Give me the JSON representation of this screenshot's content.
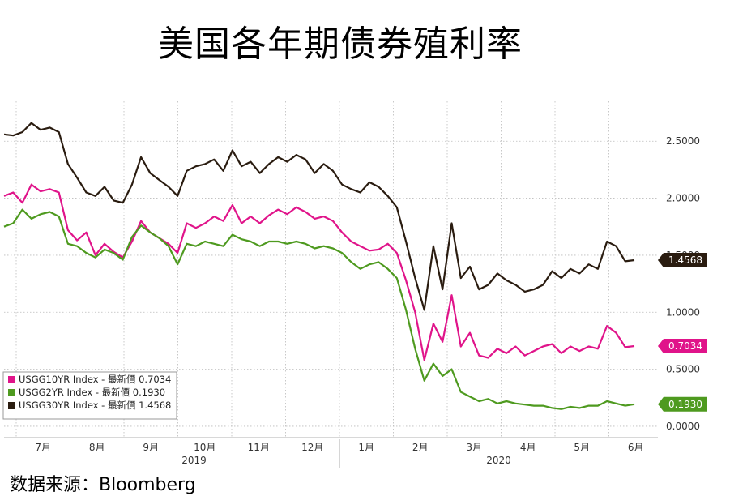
{
  "title": "美国各年期债券殖利率",
  "source": "数据来源：Bloomberg",
  "chart_data": {
    "type": "line",
    "x_ticks": [
      "7月",
      "8月",
      "9月",
      "10月",
      "11月",
      "12月",
      "1月",
      "2月",
      "3月",
      "4月",
      "5月",
      "6月"
    ],
    "year_labels": [
      "2019",
      "2020"
    ],
    "y_ticks": [
      "2.5000",
      "2.0000",
      "1.5000",
      "1.0000",
      "0.5000",
      "0.0000"
    ],
    "ylim": [
      -0.1,
      2.85
    ],
    "grid": true,
    "legend_position": "bottom-left",
    "series": [
      {
        "name": "USGG10YR Index - 最新價",
        "legend_value": "0.7034",
        "last_label": "0.7034",
        "color": "#e0148a",
        "values": [
          2.02,
          2.05,
          1.96,
          2.12,
          2.06,
          2.08,
          2.05,
          1.72,
          1.63,
          1.7,
          1.5,
          1.6,
          1.53,
          1.48,
          1.62,
          1.8,
          1.7,
          1.65,
          1.6,
          1.52,
          1.78,
          1.74,
          1.78,
          1.84,
          1.8,
          1.94,
          1.78,
          1.84,
          1.78,
          1.85,
          1.9,
          1.86,
          1.92,
          1.88,
          1.82,
          1.84,
          1.8,
          1.7,
          1.62,
          1.58,
          1.54,
          1.55,
          1.6,
          1.52,
          1.28,
          1.0,
          0.58,
          0.9,
          0.74,
          1.15,
          0.7,
          0.82,
          0.62,
          0.6,
          0.68,
          0.64,
          0.7,
          0.62,
          0.66,
          0.7,
          0.72,
          0.64,
          0.7,
          0.66,
          0.7,
          0.68,
          0.88,
          0.82,
          0.6934,
          0.7034
        ]
      },
      {
        "name": "USGG2YR Index - 最新價",
        "legend_value": "0.1930",
        "last_label": "0.1930",
        "color": "#4e9a1f",
        "values": [
          1.75,
          1.78,
          1.9,
          1.82,
          1.86,
          1.88,
          1.84,
          1.6,
          1.58,
          1.52,
          1.48,
          1.55,
          1.52,
          1.46,
          1.66,
          1.76,
          1.7,
          1.65,
          1.58,
          1.42,
          1.6,
          1.58,
          1.62,
          1.6,
          1.58,
          1.68,
          1.64,
          1.62,
          1.58,
          1.62,
          1.62,
          1.6,
          1.62,
          1.6,
          1.56,
          1.58,
          1.56,
          1.52,
          1.44,
          1.38,
          1.42,
          1.44,
          1.38,
          1.3,
          1.02,
          0.68,
          0.4,
          0.55,
          0.44,
          0.5,
          0.3,
          0.26,
          0.22,
          0.24,
          0.2,
          0.22,
          0.2,
          0.19,
          0.18,
          0.18,
          0.16,
          0.15,
          0.17,
          0.16,
          0.18,
          0.18,
          0.22,
          0.2,
          0.18,
          0.193
        ]
      },
      {
        "name": "USGG30YR Index - 最新價",
        "legend_value": "1.4568",
        "last_label": "1.4568",
        "color": "#2a1c10",
        "values": [
          2.56,
          2.55,
          2.58,
          2.66,
          2.6,
          2.62,
          2.58,
          2.3,
          2.18,
          2.05,
          2.02,
          2.1,
          1.98,
          1.96,
          2.12,
          2.36,
          2.22,
          2.16,
          2.1,
          2.02,
          2.24,
          2.28,
          2.3,
          2.34,
          2.24,
          2.42,
          2.28,
          2.32,
          2.22,
          2.3,
          2.36,
          2.32,
          2.38,
          2.34,
          2.22,
          2.3,
          2.24,
          2.12,
          2.08,
          2.05,
          2.14,
          2.1,
          2.02,
          1.92,
          1.62,
          1.3,
          1.02,
          1.58,
          1.2,
          1.78,
          1.3,
          1.4,
          1.2,
          1.24,
          1.34,
          1.28,
          1.24,
          1.18,
          1.2,
          1.24,
          1.36,
          1.3,
          1.38,
          1.34,
          1.42,
          1.38,
          1.62,
          1.58,
          1.4468,
          1.4568
        ]
      }
    ]
  }
}
